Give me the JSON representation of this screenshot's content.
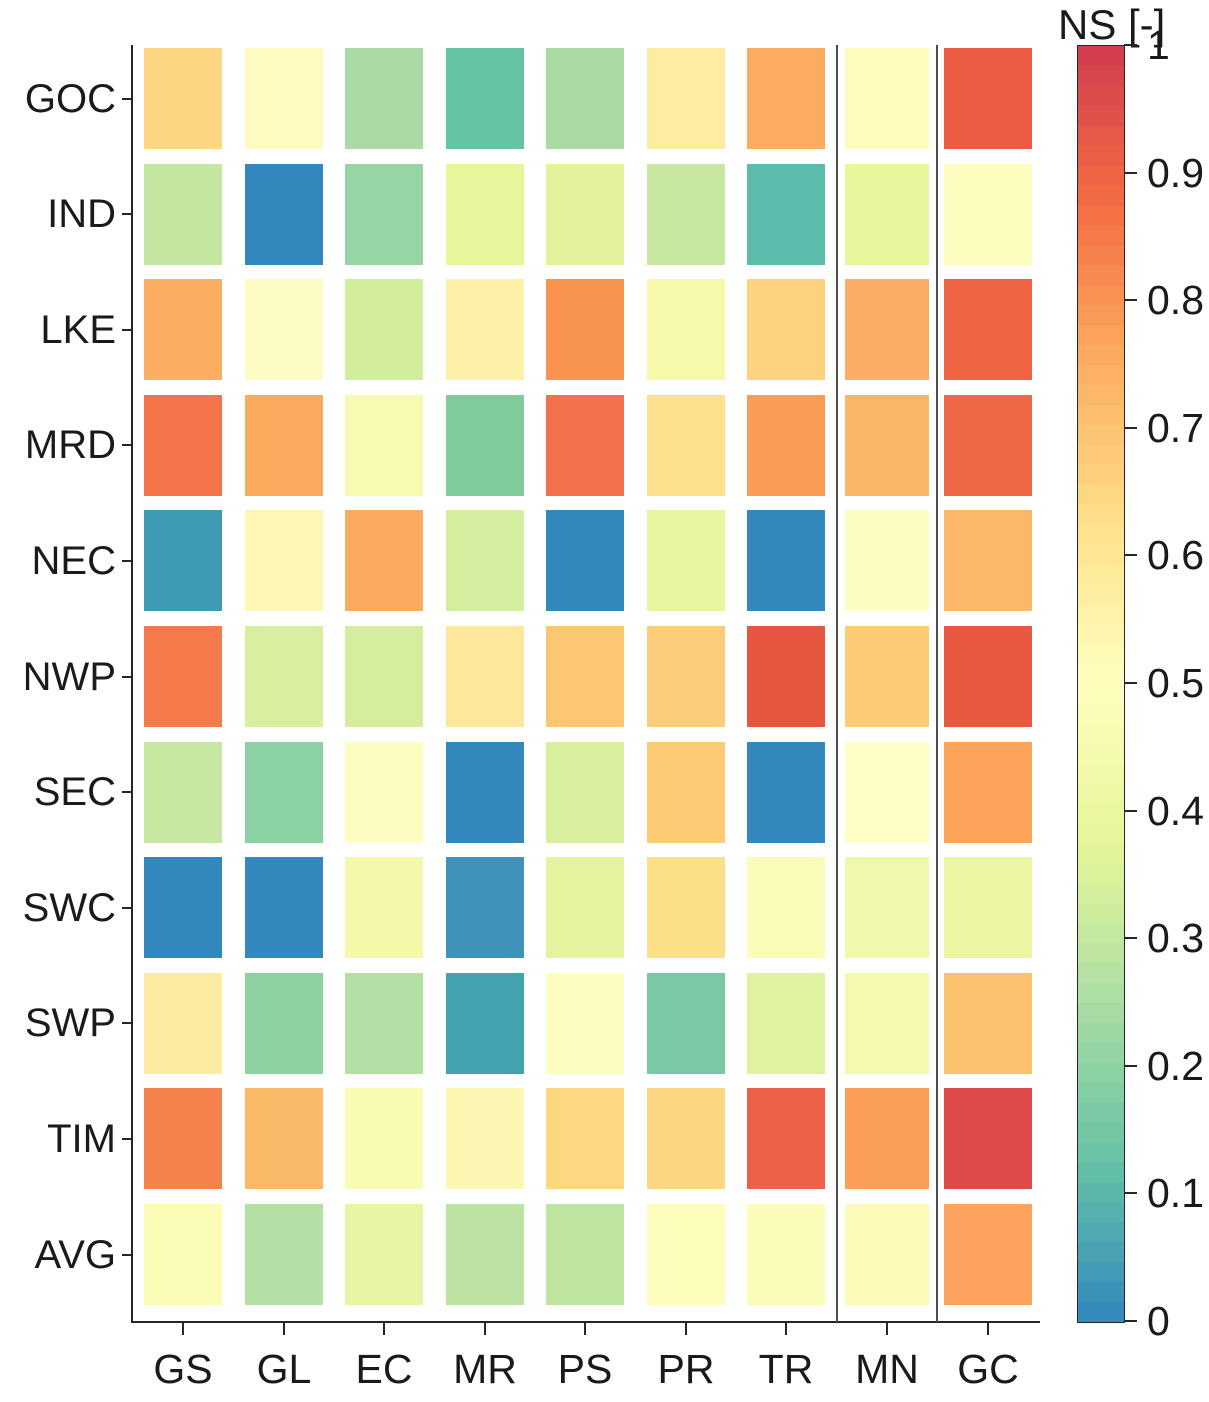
{
  "chart_data": {
    "type": "heatmap",
    "title": "",
    "rows": [
      "GOC",
      "IND",
      "LKE",
      "MRD",
      "NEC",
      "NWP",
      "SEC",
      "SWC",
      "SWP",
      "TIM",
      "AVG"
    ],
    "columns": [
      "GS",
      "GL",
      "EC",
      "MR",
      "PS",
      "PR",
      "TR",
      "MN",
      "GC"
    ],
    "column_group_separators_after": [
      "TR",
      "MN"
    ],
    "legend_position": "right",
    "grid": "off",
    "colorbar": {
      "title": "NS [-]",
      "min": 0,
      "max": 1,
      "tick_labels": [
        "1",
        "0.9",
        "0.8",
        "0.7",
        "0.6",
        "0.5",
        "0.4",
        "0.3",
        "0.2",
        "0.1",
        "0"
      ],
      "tick_values": [
        1,
        0.9,
        0.8,
        0.7,
        0.6,
        0.5,
        0.4,
        0.3,
        0.2,
        0.1,
        0
      ],
      "levels": 64,
      "gradient_stops": [
        {
          "v": 0.0,
          "c": "#3288bd"
        },
        {
          "v": 0.125,
          "c": "#66c2a5"
        },
        {
          "v": 0.25,
          "c": "#aadda4"
        },
        {
          "v": 0.375,
          "c": "#e6f598"
        },
        {
          "v": 0.5,
          "c": "#feffbe"
        },
        {
          "v": 0.625,
          "c": "#fee08b"
        },
        {
          "v": 0.75,
          "c": "#fdae61"
        },
        {
          "v": 0.875,
          "c": "#f46d43"
        },
        {
          "v": 1.0,
          "c": "#d33c4e"
        }
      ]
    },
    "values": [
      [
        0.66,
        0.49,
        0.25,
        0.13,
        0.26,
        0.56,
        0.73,
        0.49,
        0.89
      ],
      [
        0.31,
        0.0,
        0.21,
        0.4,
        0.39,
        0.32,
        0.11,
        0.41,
        0.5
      ],
      [
        0.73,
        0.5,
        0.34,
        0.55,
        0.79,
        0.44,
        0.65,
        0.73,
        0.88
      ],
      [
        0.86,
        0.72,
        0.46,
        0.17,
        0.87,
        0.62,
        0.78,
        0.71,
        0.88
      ],
      [
        0.05,
        0.53,
        0.72,
        0.35,
        0.0,
        0.4,
        0.0,
        0.5,
        0.69
      ],
      [
        0.84,
        0.36,
        0.35,
        0.59,
        0.68,
        0.66,
        0.9,
        0.67,
        0.9
      ],
      [
        0.31,
        0.19,
        0.5,
        0.0,
        0.36,
        0.67,
        0.0,
        0.5,
        0.76
      ],
      [
        0.0,
        0.0,
        0.43,
        0.06,
        0.41,
        0.62,
        0.48,
        0.44,
        0.42
      ],
      [
        0.57,
        0.21,
        0.28,
        0.08,
        0.5,
        0.16,
        0.37,
        0.45,
        0.68
      ],
      [
        0.82,
        0.69,
        0.47,
        0.52,
        0.64,
        0.63,
        0.88,
        0.77,
        0.94
      ],
      [
        0.47,
        0.28,
        0.41,
        0.3,
        0.31,
        0.49,
        0.48,
        0.51,
        0.76
      ]
    ],
    "cell_colors": [
      [
        "#fcd683",
        "#fdfbc0",
        "#abdba4",
        "#66c2a5",
        "#a8daa2",
        "#fdeda2",
        "#fbac5f",
        "#fdfbbd",
        "#ec5b42"
      ],
      [
        "#c4e6a0",
        "#3288bd",
        "#97d5a7",
        "#e7f59b",
        "#e3f39c",
        "#c8e8a2",
        "#5bbcab",
        "#eaf69c",
        "#fdfdc0"
      ],
      [
        "#fbad62",
        "#fdfcc4",
        "#d2ed9c",
        "#fdf0a8",
        "#f9944f",
        "#f5f9a9",
        "#fcd27c",
        "#fbae63",
        "#ee6342"
      ],
      [
        "#f4744a",
        "#fbab5e",
        "#f7fab0",
        "#7fcb9b",
        "#f3714a",
        "#fde08e",
        "#fa9c53",
        "#fbb566",
        "#f06745"
      ],
      [
        "#3f9ab4",
        "#fdf6b5",
        "#fbab5d",
        "#d4ee9f",
        "#3288bd",
        "#e9f6a1",
        "#3288bd",
        "#fdfcc1",
        "#fcb768"
      ],
      [
        "#f47a4b",
        "#d7ef9e",
        "#d4ee9e",
        "#fde79b",
        "#fcc672",
        "#fccd78",
        "#e9563f",
        "#fccb76",
        "#e9573f"
      ],
      [
        "#c7e7a0",
        "#8bd1a4",
        "#fdfdc2",
        "#3288bd",
        "#d8ef9e",
        "#fccb74",
        "#3288bd",
        "#fdfdc5",
        "#fba55b"
      ],
      [
        "#3288bd",
        "#3389bd",
        "#f3f9a8",
        "#3f93b8",
        "#e4f49e",
        "#fce088",
        "#fafcb8",
        "#f1f8ac",
        "#edf7a3"
      ],
      [
        "#fdeca0",
        "#8ed2a2",
        "#b3dfa2",
        "#42a3ae",
        "#fdfdc2",
        "#79c9a4",
        "#dff29e",
        "#f4f9ad",
        "#fcc26d"
      ],
      [
        "#f5824c",
        "#fbba68",
        "#f8fbb2",
        "#fdf5b2",
        "#fcd981",
        "#fcd77f",
        "#ec6147",
        "#fa9e58",
        "#dd4a47"
      ],
      [
        "#fafcb5",
        "#b5e0a3",
        "#e9f5a3",
        "#bce3a2",
        "#bfe4a0",
        "#fcfcbb",
        "#fbfcba",
        "#fdfab8",
        "#fba35c"
      ]
    ],
    "axis_color": "#262626",
    "separator_color": "#4d4d4d"
  }
}
